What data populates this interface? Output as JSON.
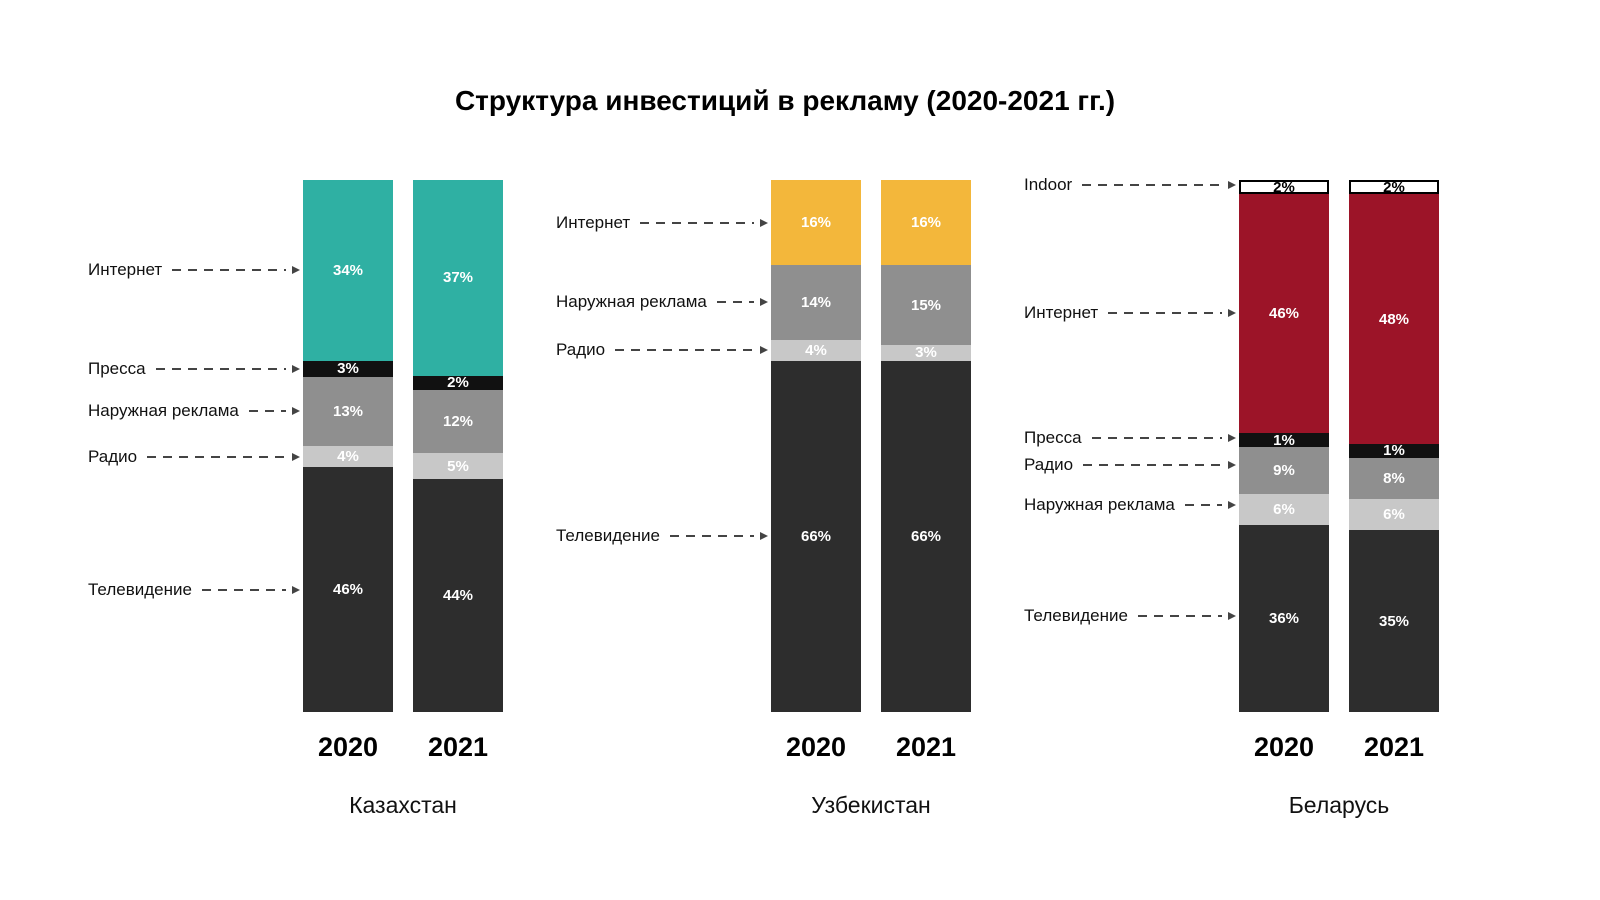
{
  "title": "Структура инвестиций в рекламу (2020-2021 гг.)",
  "chart_data": [
    {
      "type": "bar",
      "stacked": true,
      "country": "Казахстан",
      "categories": [
        "2020",
        "2021"
      ],
      "unit": "%",
      "ylim": [
        0,
        100
      ],
      "legend_position": "left-callouts",
      "series": [
        {
          "name": "Интернет",
          "color": "#2fb0a3",
          "text_color": "#ffffff",
          "values": [
            34,
            37
          ]
        },
        {
          "name": "Пресса",
          "color": "#111111",
          "text_color": "#ffffff",
          "values": [
            3,
            2
          ]
        },
        {
          "name": "Наружная реклама",
          "color": "#8f8f8f",
          "text_color": "#ffffff",
          "values": [
            13,
            12
          ]
        },
        {
          "name": "Радио",
          "color": "#c8c8c8",
          "text_color": "#ffffff",
          "values": [
            4,
            5
          ]
        },
        {
          "name": "Телевидение",
          "color": "#2d2d2d",
          "text_color": "#ffffff",
          "values": [
            46,
            44
          ]
        }
      ]
    },
    {
      "type": "bar",
      "stacked": true,
      "country": "Узбекистан",
      "categories": [
        "2020",
        "2021"
      ],
      "unit": "%",
      "ylim": [
        0,
        100
      ],
      "legend_position": "left-callouts",
      "series": [
        {
          "name": "Интернет",
          "color": "#f3b73b",
          "text_color": "#ffffff",
          "values": [
            16,
            16
          ]
        },
        {
          "name": "Наружная реклама",
          "color": "#8f8f8f",
          "text_color": "#ffffff",
          "values": [
            14,
            15
          ]
        },
        {
          "name": "Радио",
          "color": "#c8c8c8",
          "text_color": "#ffffff",
          "values": [
            4,
            3
          ]
        },
        {
          "name": "Телевидение",
          "color": "#2d2d2d",
          "text_color": "#ffffff",
          "values": [
            66,
            66
          ]
        }
      ]
    },
    {
      "type": "bar",
      "stacked": true,
      "country": "Беларусь",
      "categories": [
        "2020",
        "2021"
      ],
      "unit": "%",
      "ylim": [
        0,
        100
      ],
      "legend_position": "left-callouts",
      "series": [
        {
          "name": "Indoor",
          "color": "#ffffff",
          "text_color": "#000000",
          "border_color": "#000000",
          "values": [
            2,
            2
          ]
        },
        {
          "name": "Интернет",
          "color": "#9c1428",
          "text_color": "#ffffff",
          "values": [
            46,
            48
          ]
        },
        {
          "name": "Пресса",
          "color": "#111111",
          "text_color": "#ffffff",
          "values": [
            1,
            1
          ]
        },
        {
          "name": "Радио",
          "color": "#8f8f8f",
          "text_color": "#ffffff",
          "values": [
            9,
            8
          ]
        },
        {
          "name": "Наружная реклама",
          "color": "#c8c8c8",
          "text_color": "#ffffff",
          "values": [
            6,
            6
          ]
        },
        {
          "name": "Телевидение",
          "color": "#2d2d2d",
          "text_color": "#ffffff",
          "values": [
            36,
            35
          ]
        }
      ]
    }
  ]
}
